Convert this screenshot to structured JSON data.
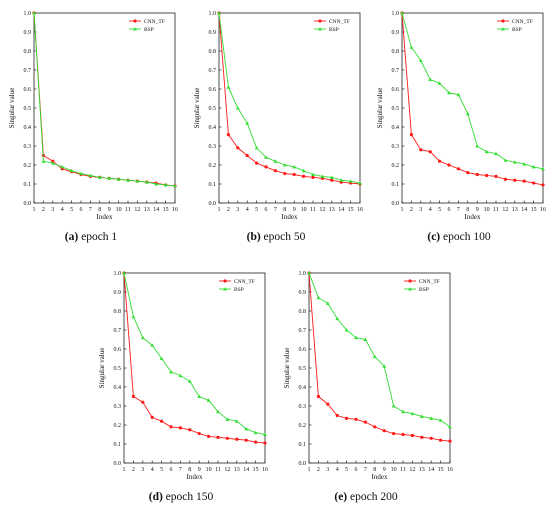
{
  "chart_data": [
    {
      "type": "line",
      "caption_label": "(a)",
      "caption_text": "epoch 1",
      "xlabel": "Index",
      "ylabel": "Singular value",
      "x": [
        1,
        2,
        3,
        4,
        5,
        6,
        7,
        8,
        9,
        10,
        11,
        12,
        13,
        14,
        15,
        16
      ],
      "xlim": [
        1,
        16
      ],
      "ylim": [
        0,
        1
      ],
      "yticks": [
        0,
        0.1,
        0.2,
        0.3,
        0.4,
        0.5,
        0.6,
        0.7,
        0.8,
        0.9,
        1.0
      ],
      "legend_position": "top-right",
      "series": [
        {
          "name": "CNN_TF",
          "color": "#ff1a1a",
          "marker": "circle",
          "values": [
            1.0,
            0.25,
            0.22,
            0.18,
            0.165,
            0.15,
            0.14,
            0.135,
            0.13,
            0.125,
            0.12,
            0.115,
            0.11,
            0.105,
            0.095,
            0.09
          ]
        },
        {
          "name": "BSP",
          "color": "#33dd33",
          "marker": "triangle",
          "values": [
            1.0,
            0.22,
            0.21,
            0.19,
            0.17,
            0.155,
            0.145,
            0.135,
            0.13,
            0.125,
            0.12,
            0.115,
            0.11,
            0.1,
            0.095,
            0.09
          ]
        }
      ]
    },
    {
      "type": "line",
      "caption_label": "(b)",
      "caption_text": "epoch 50",
      "xlabel": "Index",
      "ylabel": "Singular value",
      "x": [
        1,
        2,
        3,
        4,
        5,
        6,
        7,
        8,
        9,
        10,
        11,
        12,
        13,
        14,
        15,
        16
      ],
      "xlim": [
        1,
        16
      ],
      "ylim": [
        0,
        1
      ],
      "yticks": [
        0,
        0.1,
        0.2,
        0.3,
        0.4,
        0.5,
        0.6,
        0.7,
        0.8,
        0.9,
        1.0
      ],
      "legend_position": "top-right",
      "series": [
        {
          "name": "CNN_TF",
          "color": "#ff1a1a",
          "marker": "circle",
          "values": [
            1.0,
            0.36,
            0.29,
            0.25,
            0.21,
            0.19,
            0.17,
            0.155,
            0.15,
            0.14,
            0.135,
            0.13,
            0.12,
            0.11,
            0.105,
            0.1
          ]
        },
        {
          "name": "BSP",
          "color": "#33dd33",
          "marker": "triangle",
          "values": [
            1.0,
            0.61,
            0.5,
            0.42,
            0.29,
            0.24,
            0.22,
            0.2,
            0.19,
            0.17,
            0.15,
            0.14,
            0.135,
            0.12,
            0.115,
            0.105
          ]
        }
      ]
    },
    {
      "type": "line",
      "caption_label": "(c)",
      "caption_text": "epoch 100",
      "xlabel": "Index",
      "ylabel": "Singular value",
      "x": [
        1,
        2,
        3,
        4,
        5,
        6,
        7,
        8,
        9,
        10,
        11,
        12,
        13,
        14,
        15,
        16
      ],
      "xlim": [
        1,
        16
      ],
      "ylim": [
        0,
        1
      ],
      "yticks": [
        0,
        0.1,
        0.2,
        0.3,
        0.4,
        0.5,
        0.6,
        0.7,
        0.8,
        0.9,
        1.0
      ],
      "legend_position": "top-right",
      "series": [
        {
          "name": "CNN_TF",
          "color": "#ff1a1a",
          "marker": "circle",
          "values": [
            1.0,
            0.36,
            0.28,
            0.27,
            0.22,
            0.2,
            0.18,
            0.16,
            0.15,
            0.145,
            0.14,
            0.125,
            0.12,
            0.115,
            0.105,
            0.095
          ]
        },
        {
          "name": "BSP",
          "color": "#33dd33",
          "marker": "triangle",
          "values": [
            1.0,
            0.82,
            0.75,
            0.65,
            0.63,
            0.58,
            0.57,
            0.47,
            0.3,
            0.27,
            0.26,
            0.225,
            0.215,
            0.205,
            0.19,
            0.18
          ]
        }
      ]
    },
    {
      "type": "line",
      "caption_label": "(d)",
      "caption_text": "epoch 150",
      "xlabel": "Index",
      "ylabel": "Singular value",
      "x": [
        1,
        2,
        3,
        4,
        5,
        6,
        7,
        8,
        9,
        10,
        11,
        12,
        13,
        14,
        15,
        16
      ],
      "xlim": [
        1,
        16
      ],
      "ylim": [
        0,
        1
      ],
      "yticks": [
        0,
        0.1,
        0.2,
        0.3,
        0.4,
        0.5,
        0.6,
        0.7,
        0.8,
        0.9,
        1.0
      ],
      "legend_position": "top-right",
      "series": [
        {
          "name": "CNN_TF",
          "color": "#ff1a1a",
          "marker": "circle",
          "values": [
            1.0,
            0.35,
            0.32,
            0.24,
            0.22,
            0.19,
            0.185,
            0.175,
            0.155,
            0.14,
            0.135,
            0.13,
            0.125,
            0.12,
            0.11,
            0.105
          ]
        },
        {
          "name": "BSP",
          "color": "#33dd33",
          "marker": "triangle",
          "values": [
            1.0,
            0.77,
            0.66,
            0.62,
            0.55,
            0.48,
            0.46,
            0.43,
            0.35,
            0.33,
            0.27,
            0.23,
            0.22,
            0.18,
            0.16,
            0.15
          ]
        }
      ]
    },
    {
      "type": "line",
      "caption_label": "(e)",
      "caption_text": "epoch 200",
      "xlabel": "Index",
      "ylabel": "Singular value",
      "x": [
        1,
        2,
        3,
        4,
        5,
        6,
        7,
        8,
        9,
        10,
        11,
        12,
        13,
        14,
        15,
        16
      ],
      "xlim": [
        1,
        16
      ],
      "ylim": [
        0,
        1
      ],
      "yticks": [
        0,
        0.1,
        0.2,
        0.3,
        0.4,
        0.5,
        0.6,
        0.7,
        0.8,
        0.9,
        1.0
      ],
      "legend_position": "top-right",
      "series": [
        {
          "name": "CNN_TF",
          "color": "#ff1a1a",
          "marker": "circle",
          "values": [
            1.0,
            0.35,
            0.31,
            0.25,
            0.235,
            0.23,
            0.215,
            0.19,
            0.17,
            0.155,
            0.15,
            0.145,
            0.135,
            0.13,
            0.12,
            0.115
          ]
        },
        {
          "name": "BSP",
          "color": "#33dd33",
          "marker": "triangle",
          "values": [
            1.0,
            0.87,
            0.84,
            0.76,
            0.7,
            0.66,
            0.65,
            0.56,
            0.51,
            0.3,
            0.27,
            0.26,
            0.245,
            0.235,
            0.225,
            0.19
          ]
        }
      ]
    }
  ]
}
